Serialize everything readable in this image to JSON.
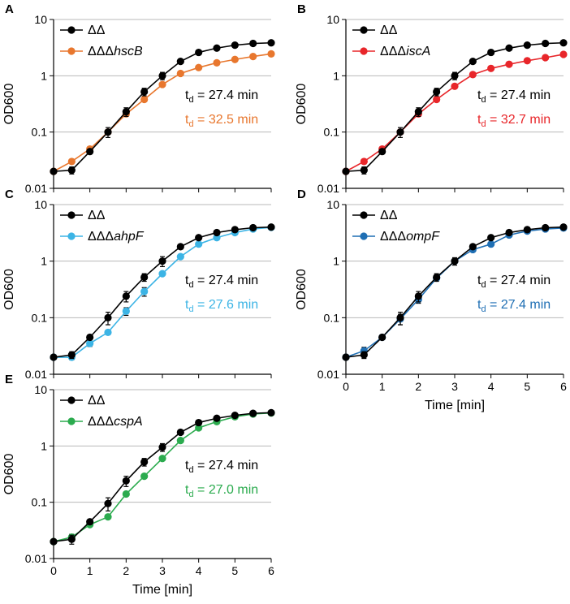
{
  "chart_data": [
    {
      "type": "line",
      "panel": "A",
      "ylabel": "OD600",
      "xlabel": "",
      "yscale": "log",
      "ylim": [
        0.01,
        10
      ],
      "xlim": [
        0,
        6
      ],
      "yticks": [
        "0.01",
        "0.1",
        "1",
        "10"
      ],
      "xticks": [],
      "grid": true,
      "x": [
        0,
        0.5,
        1,
        1.5,
        2,
        2.5,
        3,
        3.5,
        4,
        4.5,
        5,
        5.5,
        6
      ],
      "series": [
        {
          "name": "ΔΔ",
          "italic": "",
          "color": "#000000",
          "values": [
            0.02,
            0.021,
            0.045,
            0.1,
            0.23,
            0.52,
            1.0,
            1.8,
            2.6,
            3.1,
            3.5,
            3.75,
            3.85
          ],
          "errors": [
            0,
            0.003,
            0,
            0.02,
            0.04,
            0.08,
            0.15,
            0,
            0,
            0,
            0,
            0,
            0
          ]
        },
        {
          "name": "ΔΔΔ",
          "italic": "hscB",
          "color": "#e8772e",
          "values": [
            0.02,
            0.03,
            0.05,
            0.1,
            0.21,
            0.38,
            0.7,
            1.1,
            1.4,
            1.7,
            1.95,
            2.2,
            2.45
          ],
          "errors": [
            0,
            0,
            0,
            0,
            0,
            0,
            0,
            0,
            0,
            0,
            0,
            0,
            0
          ]
        }
      ],
      "annotations": [
        {
          "prefix": "t",
          "sub": "d",
          "text": " = 27.4 min",
          "color": "#000000"
        },
        {
          "prefix": "t",
          "sub": "d",
          "text": " = 32.5 min",
          "color": "#e8772e"
        }
      ]
    },
    {
      "type": "line",
      "panel": "B",
      "ylabel": "OD600",
      "xlabel": "",
      "yscale": "log",
      "ylim": [
        0.01,
        10
      ],
      "xlim": [
        0,
        6
      ],
      "yticks": [
        "0.01",
        "0.1",
        "1",
        "10"
      ],
      "xticks": [],
      "grid": true,
      "x": [
        0,
        0.5,
        1,
        1.5,
        2,
        2.5,
        3,
        3.5,
        4,
        4.5,
        5,
        5.5,
        6
      ],
      "series": [
        {
          "name": "ΔΔ",
          "italic": "",
          "color": "#000000",
          "values": [
            0.02,
            0.021,
            0.045,
            0.1,
            0.23,
            0.52,
            1.0,
            1.8,
            2.6,
            3.1,
            3.5,
            3.75,
            3.85
          ],
          "errors": [
            0,
            0.003,
            0,
            0.02,
            0.04,
            0.08,
            0.15,
            0,
            0,
            0,
            0,
            0,
            0
          ]
        },
        {
          "name": "ΔΔΔ",
          "italic": "iscA",
          "color": "#e8262a",
          "values": [
            0.02,
            0.03,
            0.05,
            0.1,
            0.21,
            0.38,
            0.65,
            1.05,
            1.35,
            1.6,
            1.85,
            2.1,
            2.4
          ],
          "errors": [
            0,
            0,
            0,
            0,
            0,
            0,
            0,
            0,
            0,
            0,
            0,
            0,
            0
          ]
        }
      ],
      "annotations": [
        {
          "prefix": "t",
          "sub": "d",
          "text": " = 27.4 min",
          "color": "#000000"
        },
        {
          "prefix": "t",
          "sub": "d",
          "text": " = 32.7 min",
          "color": "#e8262a"
        }
      ]
    },
    {
      "type": "line",
      "panel": "C",
      "ylabel": "OD600",
      "xlabel": "",
      "yscale": "log",
      "ylim": [
        0.01,
        10
      ],
      "xlim": [
        0,
        6
      ],
      "yticks": [
        "0.01",
        "0.1",
        "1",
        "10"
      ],
      "xticks": [],
      "grid": true,
      "x": [
        0,
        0.5,
        1,
        1.5,
        2,
        2.5,
        3,
        3.5,
        4,
        4.5,
        5,
        5.5,
        6
      ],
      "series": [
        {
          "name": "ΔΔ",
          "italic": "",
          "color": "#000000",
          "values": [
            0.02,
            0.022,
            0.045,
            0.1,
            0.24,
            0.52,
            1.0,
            1.8,
            2.6,
            3.2,
            3.6,
            3.9,
            4.0
          ],
          "errors": [
            0,
            0.003,
            0,
            0.025,
            0.05,
            0.08,
            0.2,
            0,
            0,
            0,
            0,
            0,
            0
          ]
        },
        {
          "name": "ΔΔΔ",
          "italic": "ahpF",
          "color": "#3cb4e5",
          "values": [
            0.02,
            0.02,
            0.035,
            0.055,
            0.13,
            0.29,
            0.6,
            1.2,
            2.0,
            2.6,
            3.2,
            3.7,
            3.95
          ],
          "errors": [
            0,
            0.002,
            0.004,
            0,
            0.02,
            0.05,
            0,
            0,
            0,
            0,
            0,
            0,
            0
          ]
        }
      ],
      "annotations": [
        {
          "prefix": "t",
          "sub": "d",
          "text": " = 27.4 min",
          "color": "#000000"
        },
        {
          "prefix": "t",
          "sub": "d",
          "text": " = 27.6 min",
          "color": "#3cb4e5"
        }
      ]
    },
    {
      "type": "line",
      "panel": "D",
      "ylabel": "OD600",
      "xlabel": "Time [min]",
      "yscale": "log",
      "ylim": [
        0.01,
        10
      ],
      "xlim": [
        0,
        6
      ],
      "yticks": [
        "0.01",
        "0.1",
        "1",
        "10"
      ],
      "xticks": [
        "0",
        "1",
        "2",
        "3",
        "4",
        "5",
        "6"
      ],
      "grid": true,
      "x": [
        0,
        0.5,
        1,
        1.5,
        2,
        2.5,
        3,
        3.5,
        4,
        4.5,
        5,
        5.5,
        6
      ],
      "series": [
        {
          "name": "ΔΔ",
          "italic": "",
          "color": "#000000",
          "values": [
            0.02,
            0.022,
            0.045,
            0.1,
            0.24,
            0.52,
            1.0,
            1.8,
            2.6,
            3.2,
            3.6,
            3.9,
            4.0
          ],
          "errors": [
            0,
            0.003,
            0,
            0.025,
            0.05,
            0.08,
            0.15,
            0,
            0,
            0,
            0,
            0,
            0
          ]
        },
        {
          "name": "ΔΔΔ",
          "italic": "ompF",
          "color": "#1f6fb4",
          "values": [
            0.02,
            0.026,
            0.045,
            0.095,
            0.21,
            0.5,
            1.0,
            1.6,
            2.0,
            2.9,
            3.4,
            3.7,
            3.85
          ],
          "errors": [
            0,
            0.004,
            0,
            0.02,
            0.03,
            0,
            0,
            0,
            0,
            0,
            0,
            0,
            0
          ]
        }
      ],
      "annotations": [
        {
          "prefix": "t",
          "sub": "d",
          "text": " = 27.4 min",
          "color": "#000000"
        },
        {
          "prefix": "t",
          "sub": "d",
          "text": " = 27.4 min",
          "color": "#1f6fb4"
        }
      ]
    },
    {
      "type": "line",
      "panel": "E",
      "ylabel": "OD600",
      "xlabel": "Time [min]",
      "yscale": "log",
      "ylim": [
        0.01,
        10
      ],
      "xlim": [
        0,
        6
      ],
      "yticks": [
        "0.01",
        "0.1",
        "1",
        "10"
      ],
      "xticks": [
        "0",
        "1",
        "2",
        "3",
        "4",
        "5",
        "6"
      ],
      "grid": true,
      "x": [
        0,
        0.5,
        1,
        1.5,
        2,
        2.5,
        3,
        3.5,
        4,
        4.5,
        5,
        5.5,
        6
      ],
      "series": [
        {
          "name": "ΔΔ",
          "italic": "",
          "color": "#000000",
          "values": [
            0.02,
            0.022,
            0.045,
            0.095,
            0.24,
            0.52,
            0.95,
            1.75,
            2.6,
            3.1,
            3.5,
            3.8,
            3.9
          ],
          "errors": [
            0,
            0.004,
            0,
            0.025,
            0.05,
            0.08,
            0.15,
            0,
            0,
            0,
            0,
            0,
            0
          ]
        },
        {
          "name": "ΔΔΔ",
          "italic": "cspA",
          "color": "#2bab4e",
          "values": [
            0.02,
            0.024,
            0.04,
            0.055,
            0.14,
            0.29,
            0.6,
            1.25,
            2.1,
            2.7,
            3.3,
            3.7,
            3.85
          ],
          "errors": [
            0,
            0.003,
            0,
            0,
            0,
            0,
            0,
            0,
            0,
            0,
            0,
            0,
            0
          ]
        }
      ],
      "annotations": [
        {
          "prefix": "t",
          "sub": "d",
          "text": " = 27.4 min",
          "color": "#000000"
        },
        {
          "prefix": "t",
          "sub": "d",
          "text": " = 27.0 min",
          "color": "#2bab4e"
        }
      ]
    }
  ]
}
